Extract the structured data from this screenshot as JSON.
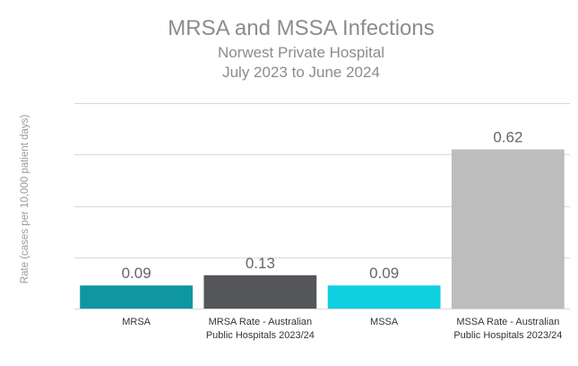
{
  "chart_data": {
    "type": "bar",
    "title": "MRSA and MSSA Infections",
    "subtitle_lines": [
      "Norwest Private Hospital",
      "July 2023 to June 2024"
    ],
    "ylabel": "Rate (cases  per 10,000 patient days)",
    "xlabel": "",
    "categories": [
      [
        "MRSA"
      ],
      [
        "MRSA Rate - Australian",
        "Public Hospitals 2023/24"
      ],
      [
        "MSSA"
      ],
      [
        "MSSA Rate - Australian",
        "Public Hospitals 2023/24"
      ]
    ],
    "values": [
      0.09,
      0.13,
      0.09,
      0.62
    ],
    "data_labels": [
      "0.09",
      "0.13",
      "0.09",
      "0.62"
    ],
    "colors": [
      "#0e97a0",
      "#545659",
      "#0fcfe0",
      "#bdbdbd"
    ],
    "ylim": [
      0,
      0.8
    ],
    "grid": true,
    "gridlines": [
      0,
      0.2,
      0.4,
      0.6,
      0.8
    ],
    "legend": "none"
  }
}
